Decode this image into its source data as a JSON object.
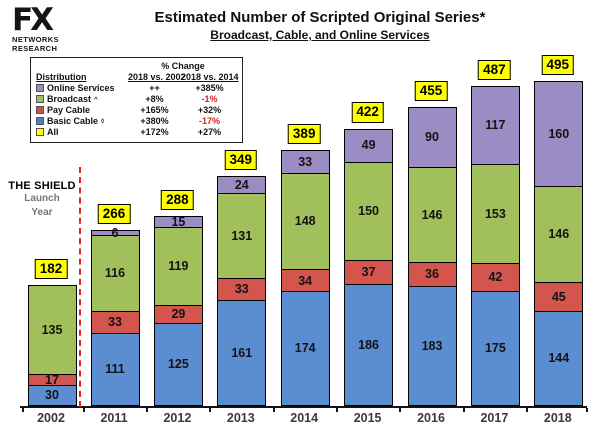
{
  "header": {
    "logo_line1": "FX",
    "logo_line2": "NETWORKS",
    "logo_line3": "RESEARCH",
    "title": "Estimated Number of Scripted Original Series*",
    "subtitle": "Broadcast, Cable, and Online Services"
  },
  "legend": {
    "header_span": "% Change",
    "col_distribution": "Distribution",
    "col_2002": "2018 vs. 2002",
    "col_2014": "2018 vs. 2014",
    "rows": [
      {
        "label": "Online Services",
        "marker": "",
        "color": "#9C8CC4",
        "vs2002": "++",
        "vs2014": "+385%"
      },
      {
        "label": "Broadcast",
        "marker": "^",
        "color": "#A1BF5B",
        "vs2002": "+8%",
        "vs2014": "-1%"
      },
      {
        "label": "Pay Cable",
        "marker": "",
        "color": "#C9504B",
        "vs2002": "+165%",
        "vs2014": "+32%"
      },
      {
        "label": "Basic Cable",
        "marker": "◊",
        "color": "#4F81BD",
        "vs2002": "+380%",
        "vs2014": "-17%"
      },
      {
        "label": "All",
        "marker": "",
        "color": "#FFFF00",
        "vs2002": "+172%",
        "vs2014": "+27%"
      }
    ],
    "negative_color": "#e02020"
  },
  "annotation": {
    "line1": "THE SHIELD",
    "line2": "Launch",
    "line3": "Year",
    "divider_color": "#e3231c"
  },
  "chart_data": {
    "type": "bar",
    "stacked": true,
    "title": "Estimated Number of Scripted Original Series*",
    "subtitle": "Broadcast, Cable, and Online Services",
    "categories": [
      "2002",
      "2011",
      "2012",
      "2013",
      "2014",
      "2015",
      "2016",
      "2017",
      "2018"
    ],
    "series": [
      {
        "name": "Basic Cable",
        "color": "#5B8DD1",
        "values": [
          30,
          111,
          125,
          161,
          174,
          186,
          183,
          175,
          144
        ]
      },
      {
        "name": "Pay Cable",
        "color": "#D4544E",
        "values": [
          17,
          33,
          29,
          33,
          34,
          37,
          36,
          42,
          45
        ]
      },
      {
        "name": "Broadcast",
        "color": "#A1BF5B",
        "values": [
          135,
          116,
          119,
          131,
          148,
          150,
          146,
          153,
          146
        ]
      },
      {
        "name": "Online Services",
        "color": "#9C8CC4",
        "values": [
          0,
          6,
          15,
          24,
          33,
          49,
          90,
          117,
          160
        ]
      }
    ],
    "series_order_bottom_to_top": [
      "Basic Cable",
      "Pay Cable",
      "Broadcast",
      "Online Services"
    ],
    "totals": [
      182,
      266,
      288,
      349,
      389,
      422,
      455,
      487,
      495
    ],
    "total_label_bg": "#FFFF00",
    "xlabel": "",
    "ylabel": "",
    "ylim": [
      0,
      520
    ],
    "grid": false,
    "legend_position": "top-left"
  }
}
